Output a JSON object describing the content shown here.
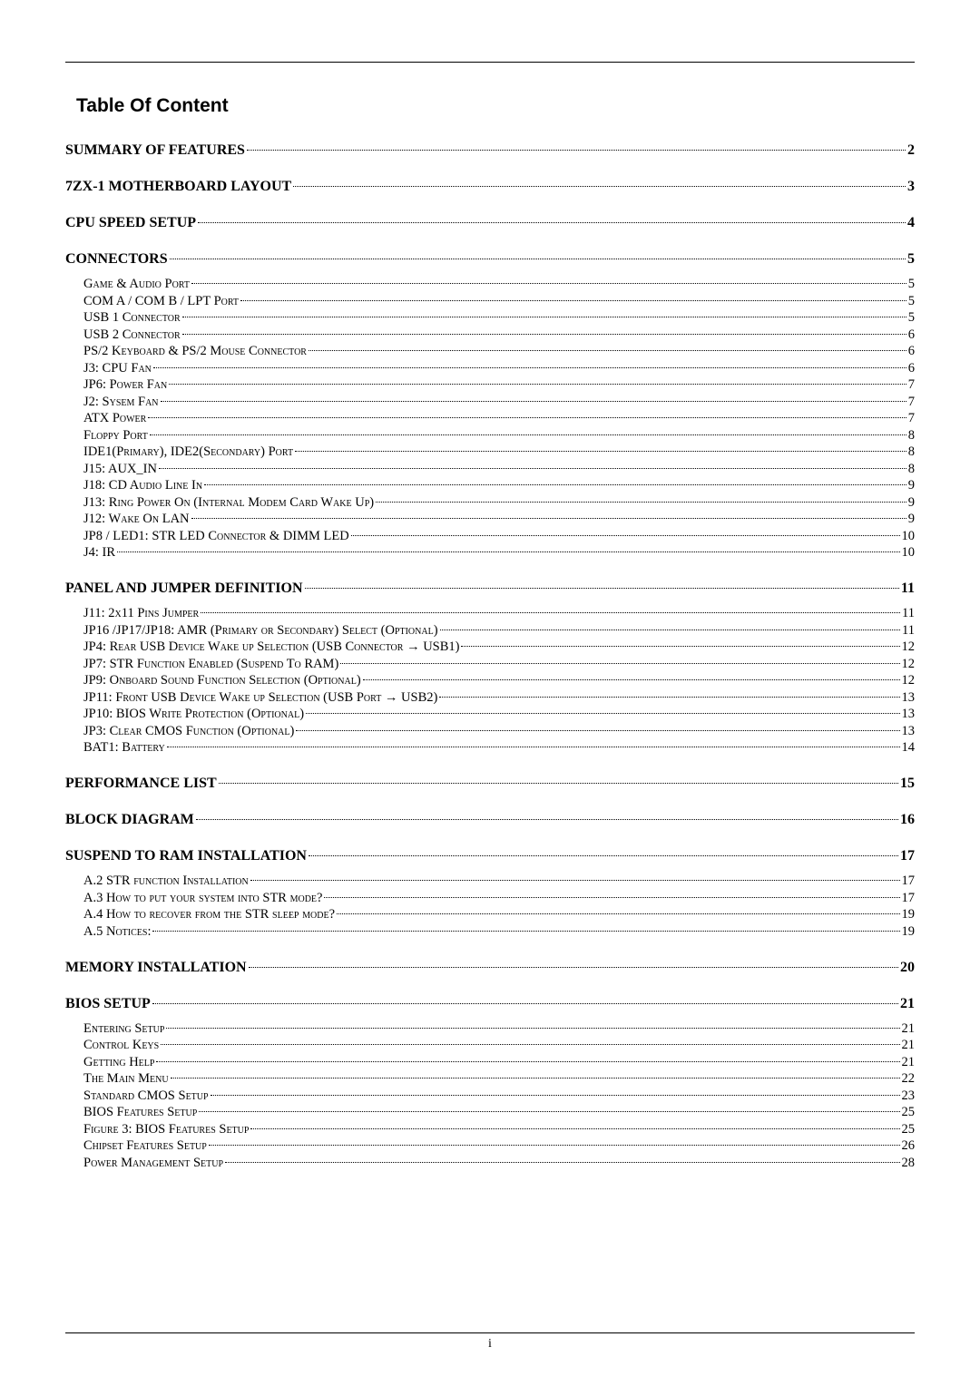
{
  "title": "Table Of Content",
  "footer_page": "i",
  "colors": {
    "text": "#000000",
    "background": "#ffffff",
    "rule": "#000000",
    "leader": "#000000"
  },
  "entries": [
    {
      "level": 1,
      "text": "SUMMARY OF FEATURES",
      "page": "2"
    },
    {
      "level": 1,
      "text": "7ZX-1 MOTHERBOARD LAYOUT",
      "page": "3"
    },
    {
      "level": 1,
      "text": "CPU SPEED SETUP",
      "page": "4"
    },
    {
      "level": 1,
      "text": "CONNECTORS",
      "page": "5"
    },
    {
      "level": 2,
      "text": "Game & Audio Port",
      "page": "5",
      "group_start": true
    },
    {
      "level": 2,
      "text": "COM A / COM B / LPT Port",
      "page": "5"
    },
    {
      "level": 2,
      "text": "USB 1 Connector",
      "page": "5"
    },
    {
      "level": 2,
      "text": "USB 2 Connector",
      "page": "6"
    },
    {
      "level": 2,
      "text": "PS/2 Keyboard & PS/2 Mouse Connector",
      "page": "6"
    },
    {
      "level": 2,
      "text": "J3: CPU Fan",
      "page": "6"
    },
    {
      "level": 2,
      "text": "JP6: Power Fan",
      "page": "7"
    },
    {
      "level": 2,
      "text": "J2: Sysem Fan",
      "page": "7"
    },
    {
      "level": 2,
      "text": "ATX Power",
      "page": "7"
    },
    {
      "level": 2,
      "text": "Floppy Port",
      "page": "8"
    },
    {
      "level": 2,
      "text": "IDE1(Primary), IDE2(Secondary) Port",
      "page": "8"
    },
    {
      "level": 2,
      "text": "J15: AUX_IN",
      "page": "8"
    },
    {
      "level": 2,
      "text": "J18: CD Audio Line In",
      "page": "9"
    },
    {
      "level": 2,
      "text": "J13: Ring Power On (Internal Modem Card Wake Up)",
      "page": "9"
    },
    {
      "level": 2,
      "text": "J12: Wake On LAN",
      "page": "9"
    },
    {
      "level": 2,
      "text": "JP8 / LED1: STR LED Connector & DIMM LED",
      "page": "10"
    },
    {
      "level": 2,
      "text": "J4: IR",
      "page": "10"
    },
    {
      "level": 1,
      "text": "PANEL AND JUMPER DEFINITION",
      "page": "11"
    },
    {
      "level": 2,
      "text": "J11: 2x11 Pins Jumper",
      "page": "11",
      "group_start": true
    },
    {
      "level": 2,
      "text": "JP16 /JP17/JP18: AMR (Primary or Secondary) Select (Optional)",
      "page": "11"
    },
    {
      "level": 2,
      "text": "JP4: Rear USB Device Wake up Selection (USB Connector → USB1)",
      "page": "12"
    },
    {
      "level": 2,
      "text": "JP7: STR Function Enabled (Suspend To RAM)",
      "page": "12"
    },
    {
      "level": 2,
      "text": "JP9: Onboard Sound Function Selection (Optional)",
      "page": "12"
    },
    {
      "level": 2,
      "text": "JP11: Front USB Device Wake up Selection (USB Port → USB2)",
      "page": "13"
    },
    {
      "level": 2,
      "text": "JP10: BIOS Write Protection (Optional)",
      "page": "13"
    },
    {
      "level": 2,
      "text": "JP3: Clear CMOS Function (Optional)",
      "page": "13"
    },
    {
      "level": 2,
      "text": "BAT1: Battery",
      "page": "14"
    },
    {
      "level": 1,
      "text": "PERFORMANCE LIST",
      "page": "15"
    },
    {
      "level": 1,
      "text": "BLOCK DIAGRAM",
      "page": "16"
    },
    {
      "level": 1,
      "text": "SUSPEND TO RAM INSTALLATION",
      "page": "17"
    },
    {
      "level": 2,
      "text": "A.2 STR function Installation",
      "page": "17",
      "group_start": true
    },
    {
      "level": 2,
      "text": "A.3 How to put your system into STR mode?",
      "page": "17"
    },
    {
      "level": 2,
      "text": "A.4 How to recover from the STR sleep mode?",
      "page": "19"
    },
    {
      "level": 2,
      "text": "A.5 Notices:",
      "page": "19"
    },
    {
      "level": 1,
      "text": "MEMORY INSTALLATION",
      "page": "20"
    },
    {
      "level": 1,
      "text": "BIOS SETUP",
      "page": "21"
    },
    {
      "level": 2,
      "text": "Entering Setup",
      "page": "21",
      "group_start": true
    },
    {
      "level": 2,
      "text": "Control Keys",
      "page": "21"
    },
    {
      "level": 2,
      "text": "Getting Help",
      "page": "21"
    },
    {
      "level": 2,
      "text": "The Main Menu",
      "page": "22"
    },
    {
      "level": 2,
      "text": "Standard CMOS Setup",
      "page": "23"
    },
    {
      "level": 2,
      "text": "BIOS Features Setup",
      "page": "25"
    },
    {
      "level": 2,
      "text": "Figure 3: BIOS Features Setup",
      "page": "25"
    },
    {
      "level": 2,
      "text": "Chipset Features Setup",
      "page": "26"
    },
    {
      "level": 2,
      "text": "Power Management Setup",
      "page": "28"
    }
  ]
}
